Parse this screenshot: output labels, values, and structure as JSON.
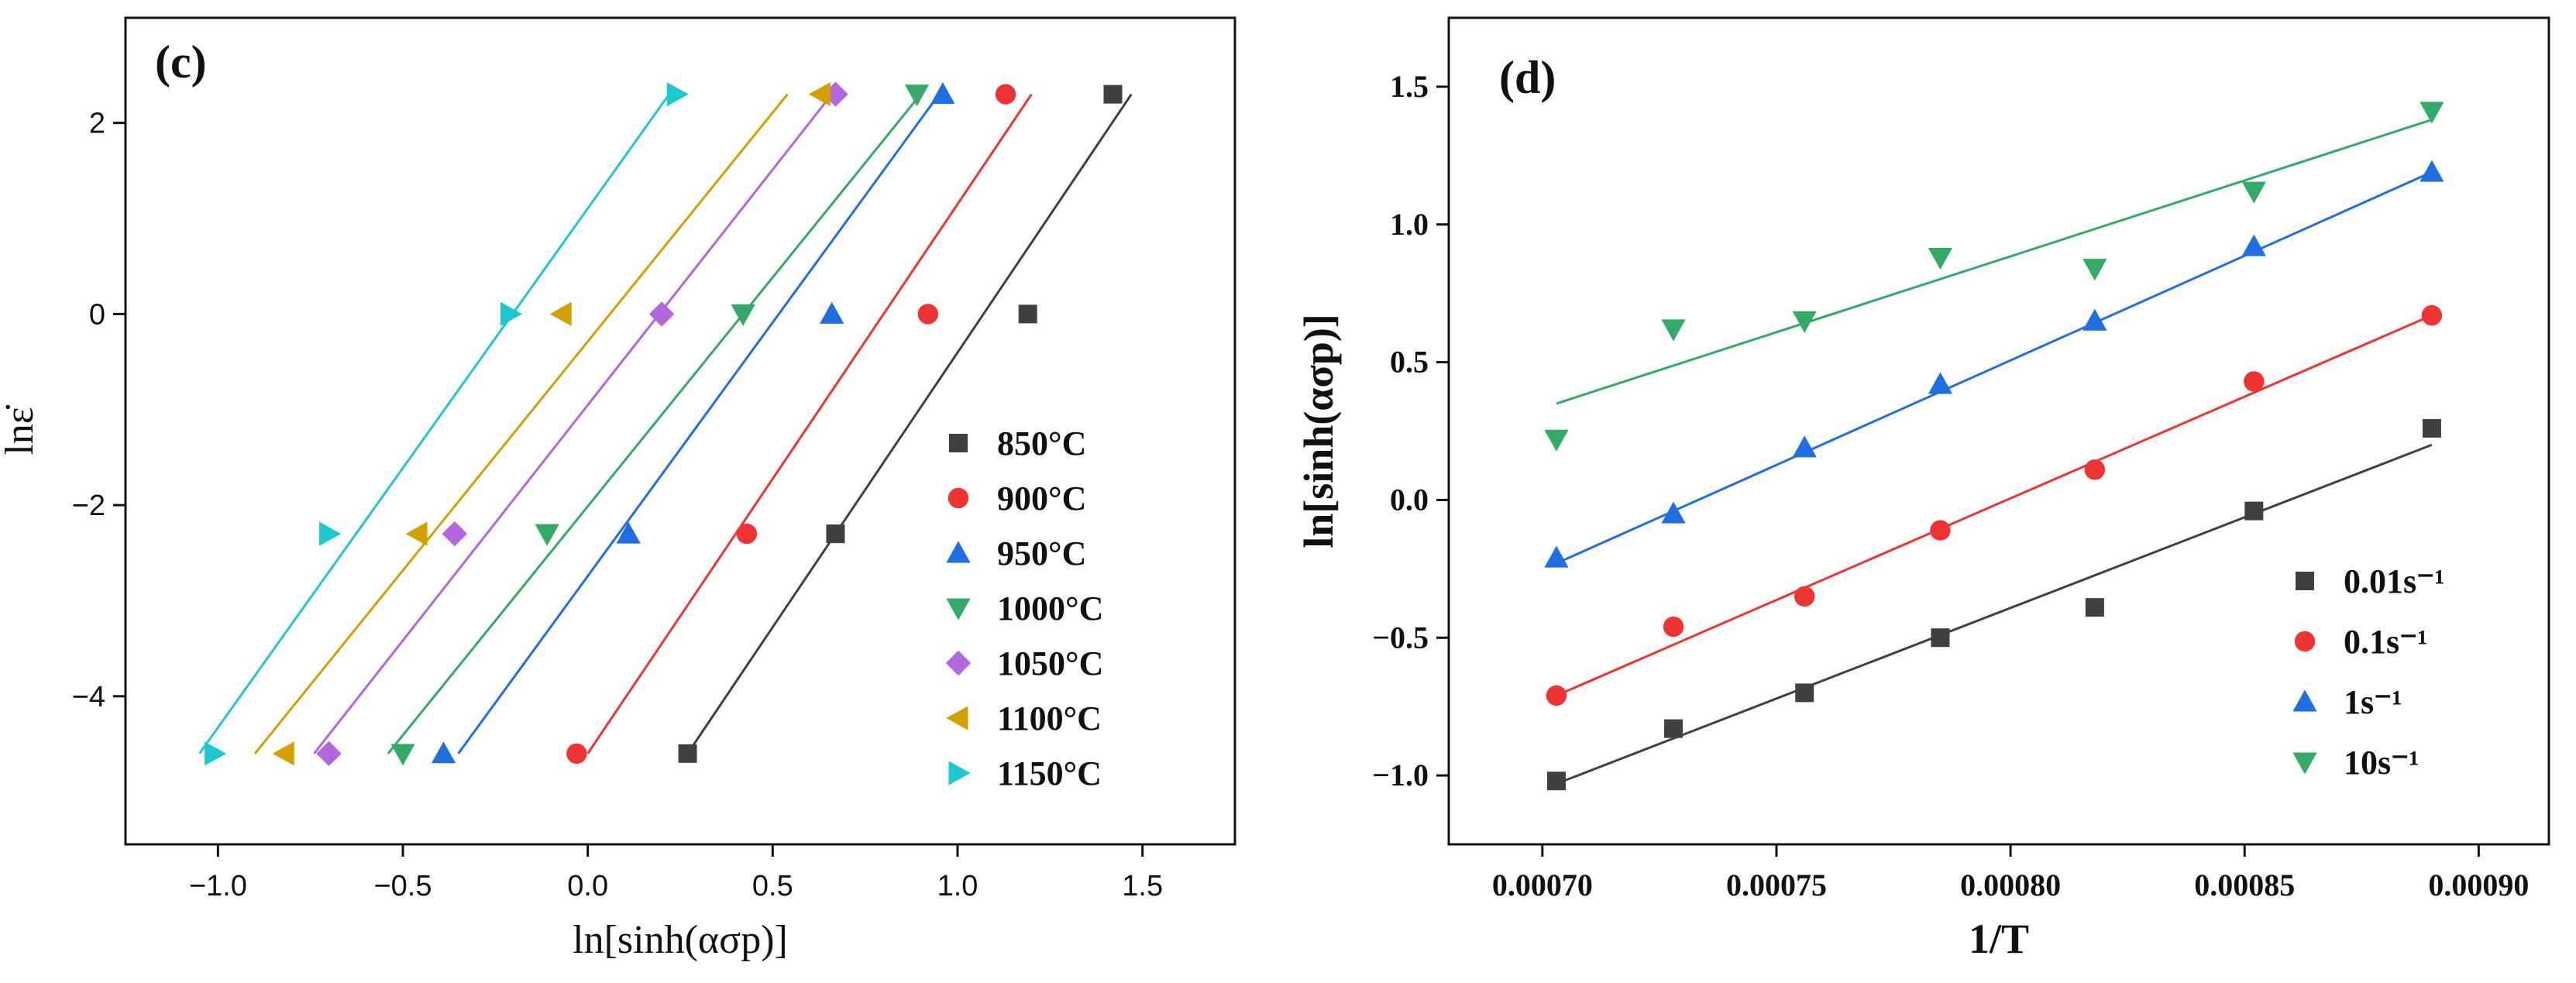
{
  "chart_data": [
    {
      "panel_label": "(c)",
      "type": "scatter",
      "xlabel": "ln[sinh(ασp)]",
      "ylabel": "lnε̇",
      "xlim": [
        -1.25,
        1.75
      ],
      "ylim": [
        -5.55,
        3.1
      ],
      "xticks": [
        -1.0,
        -0.5,
        0.0,
        0.5,
        1.0,
        1.5
      ],
      "xtick_labels": [
        "−1.0",
        "−0.5",
        "0.0",
        "0.5",
        "1.0",
        "1.5"
      ],
      "yticks": [
        -4,
        -2,
        0,
        2
      ],
      "ytick_labels": [
        "−4",
        "−2",
        "0",
        "2"
      ],
      "legend_position": "right",
      "series": [
        {
          "name": "850°C",
          "color": "#404040",
          "marker": "square",
          "points": [
            [
              0.27,
              -4.6
            ],
            [
              0.67,
              -2.3
            ],
            [
              1.19,
              0.0
            ],
            [
              1.42,
              2.3
            ]
          ],
          "fit": [
            [
              0.27,
              -4.6
            ],
            [
              1.47,
              2.3
            ]
          ]
        },
        {
          "name": "900°C",
          "color": "#ee3333",
          "marker": "circle",
          "points": [
            [
              -0.03,
              -4.6
            ],
            [
              0.43,
              -2.3
            ],
            [
              0.92,
              0.0
            ],
            [
              1.13,
              2.3
            ]
          ],
          "fit": [
            [
              0.0,
              -4.6
            ],
            [
              1.2,
              2.3
            ]
          ]
        },
        {
          "name": "950°C",
          "color": "#1f6fe0",
          "marker": "triangle-up",
          "points": [
            [
              -0.39,
              -4.6
            ],
            [
              0.11,
              -2.3
            ],
            [
              0.66,
              0.0
            ],
            [
              0.96,
              2.3
            ]
          ],
          "fit": [
            [
              -0.35,
              -4.6
            ],
            [
              0.95,
              2.3
            ]
          ]
        },
        {
          "name": "1000°C",
          "color": "#33aa66",
          "marker": "triangle-down",
          "points": [
            [
              -0.5,
              -4.6
            ],
            [
              -0.11,
              -2.3
            ],
            [
              0.42,
              0.0
            ],
            [
              0.89,
              2.3
            ]
          ],
          "fit": [
            [
              -0.54,
              -4.6
            ],
            [
              0.9,
              2.3
            ]
          ]
        },
        {
          "name": "1050°C",
          "color": "#b366dd",
          "marker": "diamond",
          "points": [
            [
              -0.7,
              -4.6
            ],
            [
              -0.36,
              -2.3
            ],
            [
              0.2,
              0.0
            ],
            [
              0.67,
              2.3
            ]
          ],
          "fit": [
            [
              -0.74,
              -4.6
            ],
            [
              0.66,
              2.3
            ]
          ]
        },
        {
          "name": "1100°C",
          "color": "#d4a000",
          "marker": "triangle-left",
          "points": [
            [
              -0.82,
              -4.6
            ],
            [
              -0.46,
              -2.3
            ],
            [
              -0.07,
              0.0
            ],
            [
              0.63,
              2.3
            ]
          ],
          "fit": [
            [
              -0.9,
              -4.6
            ],
            [
              0.54,
              2.3
            ]
          ]
        },
        {
          "name": "1150°C",
          "color": "#1ec8d0",
          "marker": "triangle-right",
          "points": [
            [
              -1.01,
              -4.6
            ],
            [
              -0.7,
              -2.3
            ],
            [
              -0.21,
              0.0
            ],
            [
              0.24,
              2.3
            ]
          ],
          "fit": [
            [
              -1.05,
              -4.6
            ],
            [
              0.22,
              2.3
            ]
          ]
        }
      ]
    },
    {
      "panel_label": "(d)",
      "type": "scatter",
      "xlabel": "1/T",
      "ylabel": "ln[sinh(ασp)]",
      "xlim": [
        0.00068,
        0.000915
      ],
      "ylim": [
        -1.25,
        1.75
      ],
      "xticks": [
        0.0007,
        0.00075,
        0.0008,
        0.00085,
        0.0009
      ],
      "xtick_labels": [
        "0.00070",
        "0.00075",
        "0.00080",
        "0.00085",
        "0.00090"
      ],
      "yticks": [
        -1.0,
        -0.5,
        0.0,
        0.5,
        1.0,
        1.5
      ],
      "ytick_labels": [
        "−1.0",
        "−0.5",
        "0.0",
        "0.5",
        "1.0",
        "1.5"
      ],
      "legend_position": "bottom-right",
      "series": [
        {
          "name": "0.01s⁻¹",
          "color": "#404040",
          "marker": "square",
          "points": [
            [
              0.000703,
              -1.02
            ],
            [
              0.000728,
              -0.83
            ],
            [
              0.000756,
              -0.7
            ],
            [
              0.000785,
              -0.5
            ],
            [
              0.000818,
              -0.39
            ],
            [
              0.000852,
              -0.04
            ],
            [
              0.00089,
              0.26
            ]
          ],
          "fit": [
            [
              0.000703,
              -1.03
            ],
            [
              0.00089,
              0.2
            ]
          ]
        },
        {
          "name": "0.1s⁻¹",
          "color": "#ee3333",
          "marker": "circle",
          "points": [
            [
              0.000703,
              -0.71
            ],
            [
              0.000728,
              -0.46
            ],
            [
              0.000756,
              -0.35
            ],
            [
              0.000785,
              -0.11
            ],
            [
              0.000818,
              0.11
            ],
            [
              0.000852,
              0.43
            ],
            [
              0.00089,
              0.67
            ]
          ],
          "fit": [
            [
              0.000703,
              -0.71
            ],
            [
              0.00089,
              0.67
            ]
          ]
        },
        {
          "name": "1s⁻¹",
          "color": "#1f6fe0",
          "marker": "triangle-up",
          "points": [
            [
              0.000703,
              -0.21
            ],
            [
              0.000728,
              -0.05
            ],
            [
              0.000756,
              0.19
            ],
            [
              0.000785,
              0.42
            ],
            [
              0.000818,
              0.65
            ],
            [
              0.000852,
              0.92
            ],
            [
              0.00089,
              1.19
            ]
          ],
          "fit": [
            [
              0.000703,
              -0.23
            ],
            [
              0.00089,
              1.19
            ]
          ]
        },
        {
          "name": "10s⁻¹",
          "color": "#33aa66",
          "marker": "triangle-down",
          "points": [
            [
              0.000703,
              0.22
            ],
            [
              0.000728,
              0.62
            ],
            [
              0.000756,
              0.65
            ],
            [
              0.000785,
              0.88
            ],
            [
              0.000818,
              0.84
            ],
            [
              0.000852,
              1.12
            ],
            [
              0.00089,
              1.41
            ]
          ],
          "fit": [
            [
              0.000703,
              0.35
            ],
            [
              0.00089,
              1.38
            ]
          ]
        }
      ]
    }
  ]
}
